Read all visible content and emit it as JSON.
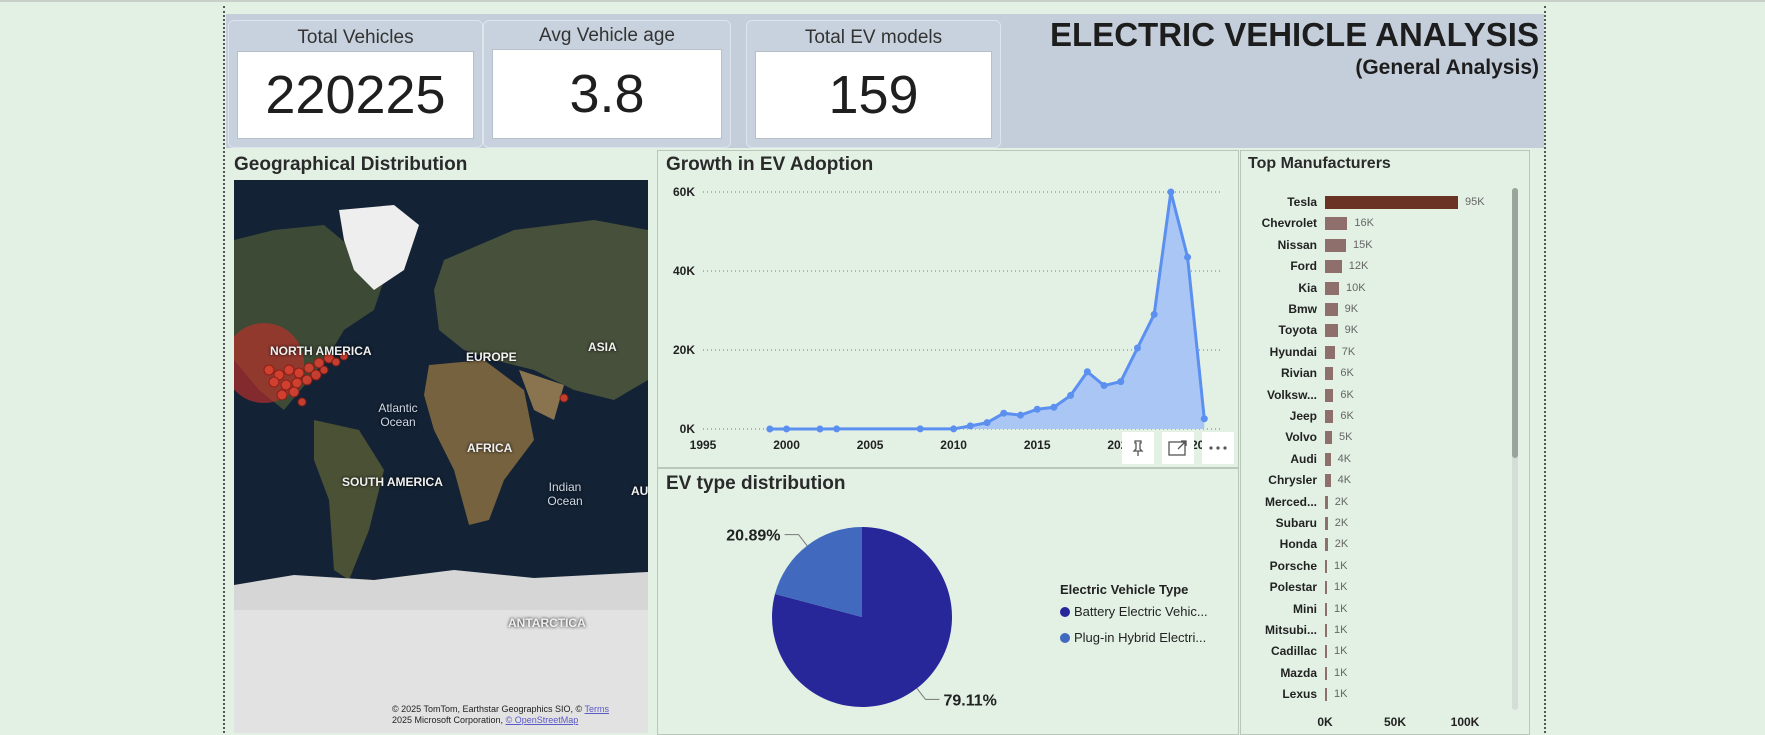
{
  "kpis": [
    {
      "title": "Total Vehicles",
      "value": "220225"
    },
    {
      "title": "Avg Vehicle age",
      "value": "3.8"
    },
    {
      "title": "Total EV models",
      "value": "159"
    }
  ],
  "title": {
    "main": "ELECTRIC VEHICLE ANALYSIS",
    "sub": "(General Analysis)"
  },
  "geo": {
    "title": "Geographical Distribution",
    "labels": {
      "north_america": "NORTH AMERICA",
      "europe": "EUROPE",
      "asia": "ASIA",
      "africa": "AFRICA",
      "south_america": "SOUTH AMERICA",
      "antarctica": "ANTARCTICA",
      "atlantic": "Atlantic Ocean",
      "indian": "Indian Ocean",
      "australia_partial": "AU"
    },
    "credit_line1": "© 2025 TomTom, Earthstar Geographics SIO, ©",
    "credit_terms": "Terms",
    "credit_line2": "2025 Microsoft Corporation,",
    "credit_osm": "© OpenStreetMap"
  },
  "growth": {
    "title": "Growth in EV Adoption",
    "chart_data": {
      "type": "area",
      "x": [
        1999,
        2000,
        2002,
        2003,
        2008,
        2010,
        2011,
        2012,
        2013,
        2014,
        2015,
        2016,
        2017,
        2018,
        2019,
        2020,
        2021,
        2022,
        2023,
        2024,
        2025
      ],
      "y": [
        5,
        10,
        5,
        20,
        30,
        20,
        800,
        1600,
        4000,
        3500,
        5000,
        5500,
        8500,
        14500,
        11000,
        12000,
        20500,
        29000,
        60000,
        43500,
        2600
      ],
      "xticks": [
        "1995",
        "2000",
        "2005",
        "2010",
        "2015",
        "2020",
        "2025"
      ],
      "yticks": [
        "0K",
        "20K",
        "40K",
        "60K"
      ],
      "xlim": [
        1995,
        2026
      ],
      "ylim": [
        0,
        60000
      ],
      "grid": "horizontal dotted",
      "color": "#5b8ff0",
      "fill": "#a9c6f4"
    }
  },
  "ev_type": {
    "title": "EV type distribution",
    "chart_data": {
      "type": "pie",
      "labels": [
        "Battery Electric Vehic...",
        "Plug-in Hybrid Electri..."
      ],
      "values": [
        79.11,
        20.89
      ],
      "value_labels": [
        "79.11%",
        "20.89%"
      ],
      "colors": [
        "#27279a",
        "#4169bd"
      ],
      "legend_title": "Electric Vehicle Type",
      "legend_position": "right"
    }
  },
  "manufacturers": {
    "title": "Top Manufacturers",
    "chart_data": {
      "type": "bar",
      "orientation": "horizontal",
      "categories": [
        "Tesla",
        "Chevrolet",
        "Nissan",
        "Ford",
        "Kia",
        "Bmw",
        "Toyota",
        "Hyundai",
        "Rivian",
        "Volksw...",
        "Jeep",
        "Volvo",
        "Audi",
        "Chrysler",
        "Merced...",
        "Subaru",
        "Honda",
        "Porsche",
        "Polestar",
        "Mini",
        "Mitsubi...",
        "Cadillac",
        "Mazda",
        "Lexus"
      ],
      "values": [
        95000,
        16000,
        15000,
        12000,
        10000,
        9000,
        9000,
        7000,
        6000,
        6000,
        6000,
        5000,
        4000,
        4000,
        2000,
        2000,
        2000,
        1000,
        1000,
        1000,
        1000,
        1000,
        1000,
        1000
      ],
      "value_labels": [
        "95K",
        "16K",
        "15K",
        "12K",
        "10K",
        "9K",
        "9K",
        "7K",
        "6K",
        "6K",
        "6K",
        "5K",
        "4K",
        "4K",
        "2K",
        "2K",
        "2K",
        "1K",
        "1K",
        "1K",
        "1K",
        "1K",
        "1K",
        "1K"
      ],
      "xticks": [
        "0K",
        "50K",
        "100K"
      ],
      "xlim": [
        0,
        100000
      ],
      "colors": {
        "highlight": "#6a3324",
        "default": "#8e6f6b"
      }
    }
  }
}
